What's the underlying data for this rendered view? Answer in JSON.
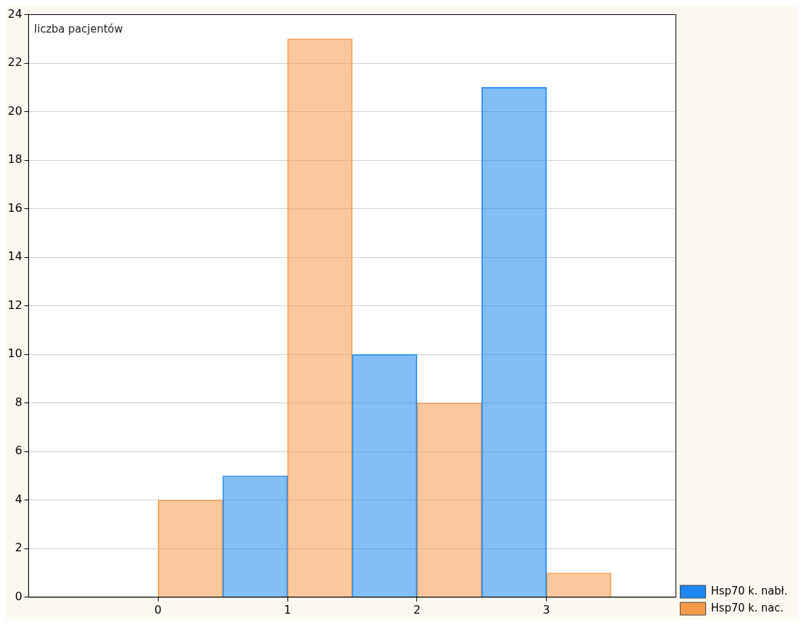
{
  "chart_data": {
    "type": "bar",
    "ylabel": "liczba pacjentów",
    "x": [
      0,
      1,
      2,
      3
    ],
    "xlim": [
      -1,
      4
    ],
    "xticks": [
      0,
      1,
      2,
      3
    ],
    "ylim": [
      0,
      24
    ],
    "yticks": [
      0,
      2,
      4,
      6,
      8,
      10,
      12,
      14,
      16,
      18,
      20,
      22,
      24
    ],
    "grid": "y",
    "legend": "bottom right",
    "series": [
      {
        "name": "Hsp70 k. nabł.",
        "color": "#1e88f0",
        "values": [
          0,
          5,
          10,
          21
        ]
      },
      {
        "name": "Hsp70 k. nac.",
        "color": "#f59a4a",
        "values": [
          4,
          23,
          8,
          1
        ]
      }
    ]
  }
}
